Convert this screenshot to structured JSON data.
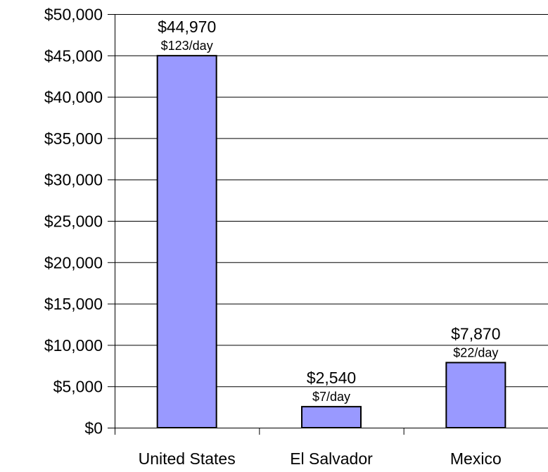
{
  "chart_data": {
    "type": "bar",
    "title": "",
    "xlabel": "",
    "ylabel": "",
    "categories": [
      "United States",
      "El Salvador",
      "Mexico"
    ],
    "values": [
      44970,
      2540,
      7870
    ],
    "value_labels": [
      "$44,970",
      "$2,540",
      "$7,870"
    ],
    "per_day_labels": [
      "$123/day",
      "$7/day",
      "$22/day"
    ],
    "ylim": [
      0,
      50000
    ],
    "y_ticks": [
      0,
      5000,
      10000,
      15000,
      20000,
      25000,
      30000,
      35000,
      40000,
      45000,
      50000
    ],
    "y_tick_labels": [
      "$0",
      "$5,000",
      "$10,000",
      "$15,000",
      "$20,000",
      "$25,000",
      "$30,000",
      "$35,000",
      "$40,000",
      "$45,000",
      "$50,000"
    ],
    "grid": true,
    "legend": "none",
    "colors": {
      "bar_fill": "#9999ff",
      "bar_stroke": "#000000",
      "grid": "#000000"
    }
  }
}
